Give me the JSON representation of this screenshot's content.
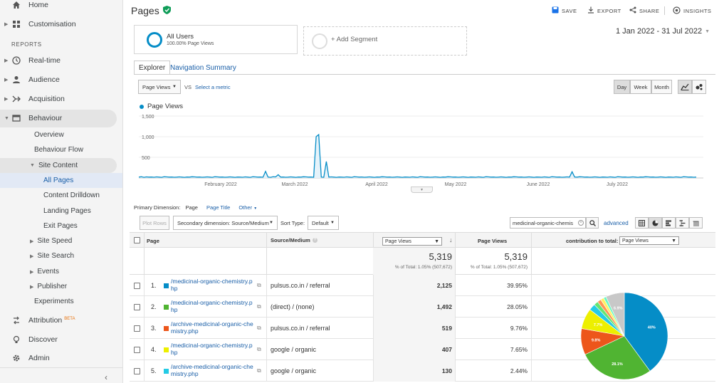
{
  "sidebar": {
    "home": "Home",
    "customisation": "Customisation",
    "reports_label": "REPORTS",
    "realtime": "Real-time",
    "audience": "Audience",
    "acquisition": "Acquisition",
    "behaviour": "Behaviour",
    "overview": "Overview",
    "behaviour_flow": "Behaviour Flow",
    "site_content": "Site Content",
    "all_pages": "All Pages",
    "content_drilldown": "Content Drilldown",
    "landing_pages": "Landing Pages",
    "exit_pages": "Exit Pages",
    "site_speed": "Site Speed",
    "site_search": "Site Search",
    "events": "Events",
    "publisher": "Publisher",
    "experiments": "Experiments",
    "attribution": "Attribution",
    "attribution_badge": "BETA",
    "discover": "Discover",
    "admin": "Admin"
  },
  "header": {
    "title": "Pages",
    "save": "SAVE",
    "export": "EXPORT",
    "share": "SHARE",
    "insights": "INSIGHTS",
    "date_range": "1 Jan 2022 - 31 Jul 2022"
  },
  "segments": {
    "all_users": "All Users",
    "all_users_sub": "100.00% Page Views",
    "add_segment": "+ Add Segment"
  },
  "tabs": {
    "explorer": "Explorer",
    "navigation_summary": "Navigation Summary"
  },
  "metric_bar": {
    "metric": "Page Views",
    "vs": "VS",
    "select_metric": "Select a metric",
    "day": "Day",
    "week": "Week",
    "month": "Month"
  },
  "chart_data": {
    "type": "line",
    "series": [
      {
        "name": "Page Views",
        "values": [
          20,
          30,
          15,
          25,
          20,
          22,
          18,
          25,
          20,
          15,
          30,
          25,
          20,
          22,
          18,
          20,
          25,
          20,
          15,
          22,
          20,
          30,
          25,
          20,
          22,
          18,
          20,
          25,
          20,
          15,
          30,
          25,
          20,
          22,
          18,
          20,
          25,
          20,
          15,
          22,
          20,
          18,
          25,
          20,
          15,
          30,
          25,
          20,
          22,
          18,
          160,
          20,
          15,
          30,
          25,
          80,
          20,
          22,
          18,
          20,
          25,
          20,
          15,
          22,
          20,
          30,
          25,
          20,
          22,
          18,
          1000,
          1050,
          20,
          15,
          400,
          20,
          25,
          20,
          15,
          22,
          20,
          18,
          25,
          20,
          15,
          30,
          25,
          20,
          22,
          18,
          20,
          25,
          20,
          15,
          22,
          20,
          30,
          25,
          20,
          22,
          18,
          20,
          25,
          20,
          15,
          22,
          20,
          18,
          25,
          20,
          15,
          30,
          25,
          20,
          22,
          18,
          20,
          25,
          20,
          15,
          22,
          20,
          30,
          25,
          20,
          22,
          18,
          20,
          25,
          20,
          15,
          22,
          20,
          18,
          25,
          20,
          15,
          30,
          25,
          20,
          22,
          18,
          20,
          25,
          20,
          15,
          22,
          20,
          30,
          25,
          20,
          22,
          18,
          20,
          25,
          20,
          15,
          22,
          20,
          18,
          25,
          20,
          15,
          30,
          25,
          20,
          22,
          18,
          20,
          25,
          20,
          150,
          22,
          20,
          30,
          25,
          20,
          22,
          18,
          20,
          25,
          20,
          15,
          22,
          20,
          18,
          25,
          20,
          15,
          30,
          25,
          20,
          22,
          18,
          20,
          25,
          20,
          15,
          22,
          20,
          30,
          25,
          20,
          22,
          18,
          20,
          25,
          20,
          15,
          22,
          20,
          18,
          25,
          20,
          15,
          30,
          25,
          20,
          22,
          18,
          20
        ]
      }
    ],
    "x_ticks": [
      "February 2022",
      "March 2022",
      "April 2022",
      "May 2022",
      "June 2022",
      "July 2022"
    ],
    "y_ticks": [
      "1,500",
      "1,000",
      "500"
    ],
    "ylim": [
      0,
      1500
    ],
    "color": "#058dc7"
  },
  "primary_dimension": {
    "label": "Primary Dimension:",
    "page": "Page",
    "page_title": "Page Title",
    "other": "Other"
  },
  "table_controls": {
    "plot_rows": "Plot Rows",
    "secondary": "Secondary dimension: Source/Medium",
    "sort_label": "Sort Type:",
    "sort_value": "Default",
    "search_value": "medicinal-organic-chemis",
    "advanced": "advanced"
  },
  "table": {
    "col_page": "Page",
    "col_source": "Source/Medium",
    "col_metric_select": "Page Views",
    "col_pageviews": "Page Views",
    "col_contribution": "contribution to total:",
    "col_contribution_select": "Page Views",
    "total1": "5,319",
    "total1_sub": "% of Total: 1.05% (507,672)",
    "total2": "5,319",
    "total2_sub": "% of Total: 1.05% (507,672)",
    "rows": [
      {
        "n": "1.",
        "page": "/medicinal-organic-chemistry.php",
        "l1": "/medicinal-organic-chemistry.p",
        "l2": "hp",
        "source": "pulsus.co.in / referral",
        "views": "2,125",
        "pct": "39.95%",
        "color": "#058dc7"
      },
      {
        "n": "2.",
        "page": "/medicinal-organic-chemistry.php",
        "l1": "/medicinal-organic-chemistry.p",
        "l2": "hp",
        "source": "(direct) / (none)",
        "views": "1,492",
        "pct": "28.05%",
        "color": "#50b432"
      },
      {
        "n": "3.",
        "page": "/archive-medicinal-organic-chemistry.php",
        "l1": "/archive-medicinal-organic-che",
        "l2": "mistry.php",
        "source": "pulsus.co.in / referral",
        "views": "519",
        "pct": "9.76%",
        "color": "#ed561b"
      },
      {
        "n": "4.",
        "page": "/medicinal-organic-chemistry.php",
        "l1": "/medicinal-organic-chemistry.p",
        "l2": "hp",
        "source": "google / organic",
        "views": "407",
        "pct": "7.65%",
        "color": "#edef00"
      },
      {
        "n": "5.",
        "page": "/archive-medicinal-organic-chemistry.php",
        "l1": "/archive-medicinal-organic-che",
        "l2": "mistry.php",
        "source": "google / organic",
        "views": "130",
        "pct": "2.44%",
        "color": "#24cbe5"
      }
    ]
  },
  "pie": {
    "slices": [
      {
        "value": 39.95,
        "color": "#058dc7",
        "label": "40%"
      },
      {
        "value": 28.05,
        "color": "#50b432",
        "label": "28.1%"
      },
      {
        "value": 9.76,
        "color": "#ed561b",
        "label": "9.8%"
      },
      {
        "value": 7.65,
        "color": "#edef00",
        "label": "7.7%"
      },
      {
        "value": 2.44,
        "color": "#24cbe5",
        "label": ""
      },
      {
        "value": 1.6,
        "color": "#64e572",
        "label": ""
      },
      {
        "value": 1.4,
        "color": "#ff9655",
        "label": ""
      },
      {
        "value": 1.2,
        "color": "#fff263",
        "label": ""
      },
      {
        "value": 1.0,
        "color": "#6af9c4",
        "label": ""
      },
      {
        "value": 6.95,
        "color": "#c8c8c8",
        "label": "6.9%"
      }
    ]
  }
}
